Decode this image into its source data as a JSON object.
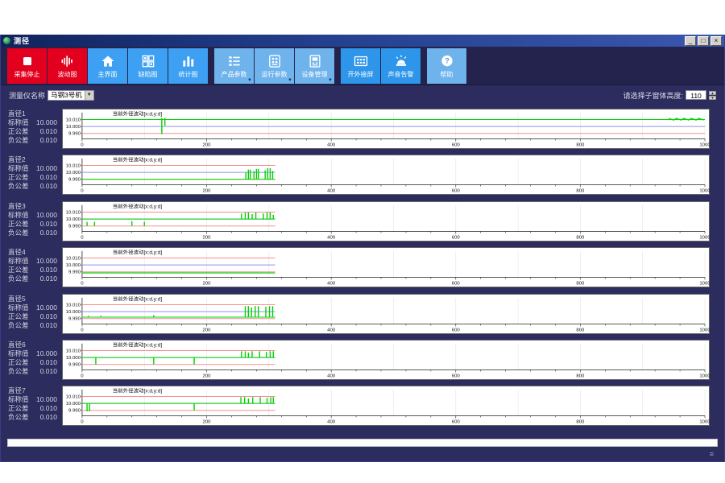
{
  "window": {
    "title": "测径",
    "minimize_label": "_",
    "maximize_label": "□",
    "close_label": "×"
  },
  "toolbar": {
    "buttons": [
      {
        "label": "采集停止",
        "icon": "stop-icon",
        "style": "red"
      },
      {
        "label": "波动图",
        "icon": "waveform-icon",
        "style": "red"
      },
      {
        "label": "主界面",
        "icon": "home-icon",
        "style": "blue"
      },
      {
        "label": "缺陷图",
        "icon": "defect-grid-icon",
        "style": "blue"
      },
      {
        "label": "统计图",
        "icon": "bar-chart-icon",
        "style": "blue",
        "gap_after": true
      },
      {
        "label": "产品参数",
        "icon": "product-params-icon",
        "style": "light",
        "dropdown": true
      },
      {
        "label": "运行参数",
        "icon": "run-params-icon",
        "style": "light",
        "dropdown": true
      },
      {
        "label": "设备管理",
        "icon": "device-manage-icon",
        "style": "light",
        "dropdown": true,
        "gap_after": true
      },
      {
        "label": "开外接屏",
        "icon": "external-screen-icon",
        "style": "mid"
      },
      {
        "label": "声音告警",
        "icon": "alarm-icon",
        "style": "mid",
        "gap_after": true
      },
      {
        "label": "帮助",
        "icon": "help-icon",
        "style": "light"
      }
    ]
  },
  "filter_bar": {
    "instrument_label": "测量仪名称",
    "instrument_value": "马钢3号机",
    "height_label": "请选择子窗体高度:",
    "height_value": "110",
    "spin_up": "▲",
    "spin_down": "▼"
  },
  "chart_data": {
    "type": "line",
    "panel_title": "当前外径波动[x:d,y:d]",
    "xlim": [
      0,
      1000
    ],
    "x_ticks": [
      0,
      200,
      400,
      600,
      800,
      1000
    ],
    "ylim": [
      9.987,
      10.013
    ],
    "y_ticks": [
      {
        "v": 10.01,
        "label": "10.010"
      },
      {
        "v": 10.0,
        "label": "10.000"
      },
      {
        "v": 9.99,
        "label": "9.990"
      }
    ],
    "labels": {
      "nominal": "标称值",
      "pos_tol": "正公差",
      "neg_tol": "负公差"
    },
    "colors": {
      "actual": "#00d200",
      "nominal_line": "#9090ee",
      "tolerance_line": "#f29090"
    },
    "charts": [
      {
        "name": "直径1",
        "nominal": "10.000",
        "pos_tol": "0.010",
        "neg_tol": "0.010",
        "trace_end": 1000,
        "lines": [
          {
            "y": 10.01,
            "color": "#00d200"
          },
          {
            "y": 10.0,
            "color": "#9090ee"
          },
          {
            "y": 9.99,
            "color": "#f29090"
          }
        ],
        "spikes": [
          [
            128,
            10.0125,
            9.989
          ],
          [
            133,
            10.0125,
            10.001
          ]
        ],
        "noise": [
          942,
          1000,
          10.0105
        ]
      },
      {
        "name": "直径2",
        "nominal": "10.000",
        "pos_tol": "0.010",
        "neg_tol": "0.010",
        "trace_end": 310,
        "lines": [
          {
            "y": 10.01,
            "color": "#f29090"
          },
          {
            "y": 10.0,
            "color": "#9090ee"
          },
          {
            "y": 9.99,
            "color": "#f29090"
          },
          {
            "y": 9.99,
            "color": "#00d200"
          }
        ],
        "spikes": [
          [
            263,
            9.99,
            10.0
          ],
          [
            267,
            9.99,
            10.004
          ],
          [
            270,
            9.99,
            10.004
          ],
          [
            276,
            9.99,
            10.002
          ],
          [
            280,
            9.99,
            10.005
          ],
          [
            283,
            9.99,
            10.005
          ],
          [
            294,
            9.99,
            10.003
          ],
          [
            298,
            9.99,
            10.006
          ],
          [
            302,
            9.99,
            10.006
          ],
          [
            306,
            9.99,
            10.002
          ]
        ]
      },
      {
        "name": "直径3",
        "nominal": "10.000",
        "pos_tol": "0.010",
        "neg_tol": "0.010",
        "trace_end": 310,
        "lines": [
          {
            "y": 10.01,
            "color": "#f29090"
          },
          {
            "y": 9.99,
            "color": "#f29090"
          },
          {
            "y": 10.0,
            "color": "#9090ee"
          },
          {
            "y": 10.0,
            "color": "#00d200"
          }
        ],
        "spikes": [
          [
            8,
            9.99,
            9.996
          ],
          [
            20,
            9.99,
            9.996
          ],
          [
            80,
            9.99,
            9.997
          ],
          [
            100,
            9.99,
            9.996
          ],
          [
            256,
            10.0,
            10.008
          ],
          [
            262,
            10.0,
            10.0095
          ],
          [
            267,
            10.0,
            10.0095
          ],
          [
            273,
            10.0,
            10.007
          ],
          [
            279,
            10.0,
            10.0095
          ],
          [
            291,
            10.0,
            10.008
          ],
          [
            297,
            10.0,
            10.0095
          ],
          [
            302,
            10.0,
            10.0095
          ],
          [
            307,
            10.0,
            10.006
          ]
        ]
      },
      {
        "name": "直径4",
        "nominal": "10.000",
        "pos_tol": "0.010",
        "neg_tol": "0.010",
        "trace_end": 310,
        "lines": [
          {
            "y": 10.01,
            "color": "#f29090"
          },
          {
            "y": 10.0,
            "color": "#9090ee"
          },
          {
            "y": 9.99,
            "color": "#f29090"
          },
          {
            "y": 9.9885,
            "color": "#00d200"
          }
        ],
        "spikes": []
      },
      {
        "name": "直径5",
        "nominal": "10.000",
        "pos_tol": "0.010",
        "neg_tol": "0.010",
        "trace_end": 310,
        "lines": [
          {
            "y": 10.01,
            "color": "#f29090"
          },
          {
            "y": 10.0,
            "color": "#9090ee"
          },
          {
            "y": 9.99,
            "color": "#f29090"
          },
          {
            "y": 9.992,
            "color": "#00d200"
          }
        ],
        "spikes": [
          [
            10,
            9.992,
            9.994
          ],
          [
            30,
            9.992,
            9.994
          ],
          [
            115,
            9.992,
            9.995
          ],
          [
            262,
            9.992,
            10.008
          ],
          [
            267,
            9.992,
            10.008
          ],
          [
            272,
            9.992,
            10.006
          ],
          [
            278,
            9.992,
            10.008
          ],
          [
            283,
            9.992,
            10.008
          ],
          [
            295,
            9.992,
            10.007
          ],
          [
            301,
            9.992,
            10.008
          ],
          [
            306,
            9.992,
            10.008
          ]
        ]
      },
      {
        "name": "直径6",
        "nominal": "10.000",
        "pos_tol": "0.010",
        "neg_tol": "0.010",
        "trace_end": 310,
        "lines": [
          {
            "y": 10.01,
            "color": "#f29090"
          },
          {
            "y": 9.99,
            "color": "#f29090"
          },
          {
            "y": 10.0,
            "color": "#9090ee"
          },
          {
            "y": 10.0,
            "color": "#00d200"
          }
        ],
        "spikes": [
          [
            22,
            10.0,
            9.99
          ],
          [
            115,
            10.0,
            9.99
          ],
          [
            180,
            10.0,
            9.99
          ],
          [
            256,
            10.0,
            10.009
          ],
          [
            262,
            10.0,
            10.009
          ],
          [
            267,
            10.0,
            10.007
          ],
          [
            273,
            10.0,
            10.009
          ],
          [
            285,
            10.0,
            10.009
          ],
          [
            296,
            10.0,
            10.008
          ],
          [
            302,
            10.0,
            10.009
          ],
          [
            307,
            10.0,
            10.009
          ]
        ]
      },
      {
        "name": "直径7",
        "nominal": "10.000",
        "pos_tol": "0.010",
        "neg_tol": "0.010",
        "trace_end": 310,
        "lines": [
          {
            "y": 10.01,
            "color": "#f29090"
          },
          {
            "y": 9.99,
            "color": "#f29090"
          },
          {
            "y": 10.0,
            "color": "#9090ee"
          },
          {
            "y": 10.0,
            "color": "#00d200"
          }
        ],
        "spikes": [
          [
            8,
            10.0,
            9.9885
          ],
          [
            12,
            10.0,
            9.9885
          ],
          [
            180,
            10.0,
            9.99
          ],
          [
            255,
            10.0,
            10.009
          ],
          [
            261,
            10.0,
            10.009
          ],
          [
            267,
            10.0,
            10.007
          ],
          [
            274,
            10.0,
            10.009
          ],
          [
            286,
            10.0,
            10.009
          ],
          [
            297,
            10.0,
            10.008
          ],
          [
            303,
            10.0,
            10.009
          ],
          [
            307,
            10.0,
            10.009
          ]
        ]
      }
    ]
  }
}
